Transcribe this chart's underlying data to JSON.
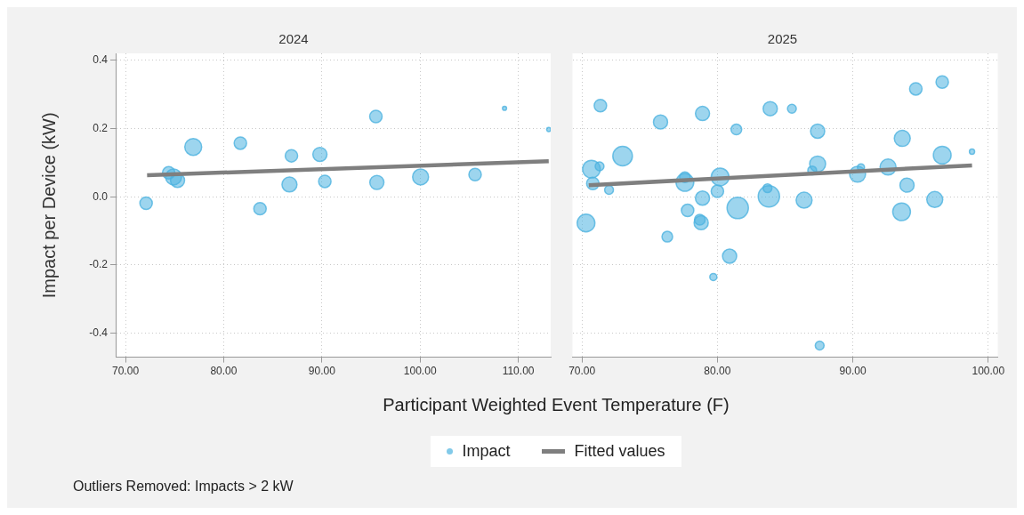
{
  "chart_data": [
    {
      "type": "bubble",
      "title": "2024",
      "ylabel": "Impact per Device (kW)",
      "xlabel": "Participant Weighted Event Temperature (F)",
      "legend": "bottom",
      "grid": true,
      "annotations": [
        "Outliers Removed: Impacts > 2 kW"
      ],
      "xlim": [
        69,
        113.3
      ],
      "xticks": [
        {
          "value": 70,
          "label": "70.00"
        },
        {
          "value": 80,
          "label": "80.00"
        },
        {
          "value": 90,
          "label": "90.00"
        },
        {
          "value": 100,
          "label": "100.00"
        },
        {
          "value": 110,
          "label": "110.00"
        }
      ],
      "ylim": [
        -0.47,
        0.42
      ],
      "yticks": [
        -0.4,
        -0.2,
        {
          "value": 0,
          "label": "0.0"
        },
        0.2,
        0.4
      ],
      "series": [
        {
          "name": "Impact",
          "color": "#4db3e0",
          "x": [
            72.1,
            74.4,
            74.9,
            75.3,
            76.9,
            81.7,
            83.7,
            86.7,
            86.9,
            89.8,
            90.3,
            95.5,
            95.6,
            100.05,
            105.6,
            108.6,
            113.1
          ],
          "values": [
            -0.019,
            0.07,
            0.058,
            0.048,
            0.146,
            0.157,
            -0.035,
            0.036,
            0.12,
            0.124,
            0.045,
            0.235,
            0.042,
            0.058,
            0.065,
            0.259,
            0.197
          ],
          "sizes": [
            0.54,
            0.54,
            0.89,
            0.7,
            1,
            0.54,
            0.54,
            0.79,
            0.54,
            0.7,
            0.54,
            0.54,
            0.7,
            0.89,
            0.54,
            0.06,
            0.06
          ]
        },
        {
          "name": "Fitted values",
          "type": "line",
          "color": "#7f7f7f",
          "x": [
            72.2,
            113.1
          ],
          "values": [
            0.063,
            0.104
          ]
        }
      ]
    },
    {
      "type": "bubble",
      "title": "2025",
      "grid": true,
      "tick_labels": "x",
      "xlim": [
        69.3,
        100.7
      ],
      "xticks": [
        {
          "value": 70,
          "label": "70.00"
        },
        {
          "value": 80,
          "label": "80.00"
        },
        {
          "value": 90,
          "label": "90.00"
        },
        {
          "value": 100,
          "label": "100.00"
        }
      ],
      "ylim": [
        -0.47,
        0.42
      ],
      "yticks": [
        -0.4,
        -0.2,
        0,
        0.2,
        0.4
      ],
      "series": [
        {
          "color": "#4db3e0",
          "x": [
            71.36,
            75.8,
            78.9,
            83.9,
            81.4,
            73.0,
            70.7,
            71.3,
            70.8,
            72.0,
            70.3,
            77.6,
            77.6,
            77.8,
            76.3,
            78.9,
            78.7,
            78.8,
            80.2,
            80.0,
            81.5,
            80.9,
            79.7,
            83.7,
            83.8,
            85.5,
            87.4,
            87.4,
            87.0,
            86.4,
            87.55,
            90.35,
            90.6,
            92.6,
            93.65,
            94.0,
            93.6,
            94.65,
            96.6,
            96.6,
            96.05,
            98.8
          ],
          "values": [
            0.267,
            0.219,
            0.244,
            0.258,
            0.197,
            0.119,
            0.081,
            0.089,
            0.039,
            0.02,
            -0.077,
            0.057,
            0.042,
            -0.04,
            -0.117,
            -0.004,
            -0.067,
            -0.076,
            0.058,
            0.016,
            -0.033,
            -0.174,
            -0.235,
            0.025,
            0.001,
            0.258,
            0.192,
            0.096,
            0.077,
            -0.01,
            -0.436,
            0.066,
            0.086,
            0.087,
            0.171,
            0.034,
            -0.044,
            0.316,
            0.336,
            0.122,
            -0.008,
            0.132
          ],
          "sizes": [
            0.34,
            0.44,
            0.44,
            0.44,
            0.25,
            0.84,
            0.69,
            0.17,
            0.34,
            0.17,
            0.69,
            0.25,
            0.69,
            0.34,
            0.25,
            0.44,
            0.25,
            0.44,
            0.69,
            0.34,
            1,
            0.44,
            0.11,
            0.17,
            1,
            0.17,
            0.44,
            0.56,
            0.17,
            0.56,
            0.17,
            0.56,
            0.11,
            0.56,
            0.56,
            0.44,
            0.69,
            0.34,
            0.34,
            0.69,
            0.56,
            0.06
          ]
        },
        {
          "type": "line",
          "color": "#7f7f7f",
          "x": [
            70.5,
            98.8
          ],
          "values": [
            0.034,
            0.092
          ]
        }
      ]
    }
  ]
}
